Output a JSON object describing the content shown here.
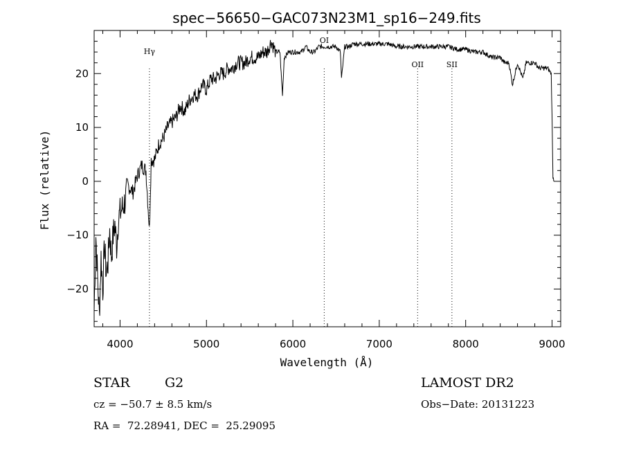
{
  "chart_data": {
    "type": "line",
    "title": "spec−56650−GAC073N23M1_sp16−249.fits",
    "xlabel": "Wavelength (Å)",
    "ylabel": "Flux (relative)",
    "xlim": [
      3700,
      9100
    ],
    "ylim": [
      -27,
      28
    ],
    "grid": false,
    "x_ticks": [
      4000,
      5000,
      6000,
      7000,
      8000,
      9000
    ],
    "y_ticks": [
      -20,
      -10,
      0,
      10,
      20
    ],
    "y_tick_labels": [
      "−20",
      "−10",
      "0",
      "10",
      "20"
    ],
    "series": [
      {
        "x": [
          3700,
          3720,
          3740,
          3760,
          3780,
          3800,
          3820,
          3840,
          3860,
          3880,
          3900,
          3920,
          3940,
          3960,
          3980,
          4000,
          4050,
          4100,
          4150,
          4200,
          4250,
          4300,
          4340,
          4360,
          4400,
          4450,
          4500,
          4550,
          4600,
          4650,
          4700,
          4750,
          4800,
          4850,
          4900,
          4950,
          5000,
          5050,
          5100,
          5150,
          5200,
          5250,
          5300,
          5350,
          5400,
          5450,
          5500,
          5550,
          5600,
          5650,
          5700,
          5750,
          5800,
          5850,
          5880,
          5900,
          5950,
          6000,
          6050,
          6100,
          6150,
          6200,
          6250,
          6300,
          6350,
          6400,
          6450,
          6500,
          6550,
          6563,
          6600,
          6650,
          6700,
          6800,
          6900,
          7000,
          7100,
          7200,
          7300,
          7400,
          7500,
          7600,
          7700,
          7800,
          7900,
          8000,
          8100,
          8200,
          8300,
          8400,
          8450,
          8500,
          8542,
          8600,
          8662,
          8700,
          8800,
          8850,
          8900,
          8950,
          8990,
          9000,
          9010,
          9020
        ],
        "y": [
          -24,
          -10,
          -18,
          -25,
          -14,
          -20,
          -12,
          -17,
          -15,
          -9,
          -14,
          -10,
          -8,
          -12,
          -7,
          -6,
          -4,
          -1,
          -2,
          1,
          3,
          2,
          -9,
          4,
          4,
          7,
          8,
          10,
          11,
          12,
          14,
          13,
          15,
          16,
          16,
          18,
          17,
          19,
          19,
          20,
          20,
          21,
          21,
          22,
          22,
          22,
          23,
          23,
          23,
          24,
          24,
          26,
          24,
          24,
          16,
          23,
          24,
          24,
          24,
          24,
          25,
          24,
          24,
          25,
          25,
          25,
          25,
          25,
          24,
          19,
          25,
          25,
          25.5,
          25.5,
          25.5,
          25.5,
          25.5,
          25,
          25,
          25,
          25,
          25,
          25,
          25,
          24.5,
          24.5,
          24,
          24,
          23,
          23,
          22,
          22,
          18,
          22,
          19,
          22,
          22,
          21,
          21,
          21,
          20,
          12,
          1,
          0
        ]
      }
    ],
    "annotations": [
      {
        "label": "Hγ",
        "x": 4340
      },
      {
        "label": "OI",
        "x": 6363
      },
      {
        "label": "OII",
        "x": 7444
      },
      {
        "label": "SII",
        "x": 7841
      }
    ]
  },
  "info": {
    "class": "STAR",
    "subclass": "G2",
    "survey": "LAMOST DR2",
    "cz": "cz = −50.7 ± 8.5 km/s",
    "obs_date": "Obs−Date: 20131223",
    "coords": "RA =  72.28941, DEC =  25.29095"
  }
}
